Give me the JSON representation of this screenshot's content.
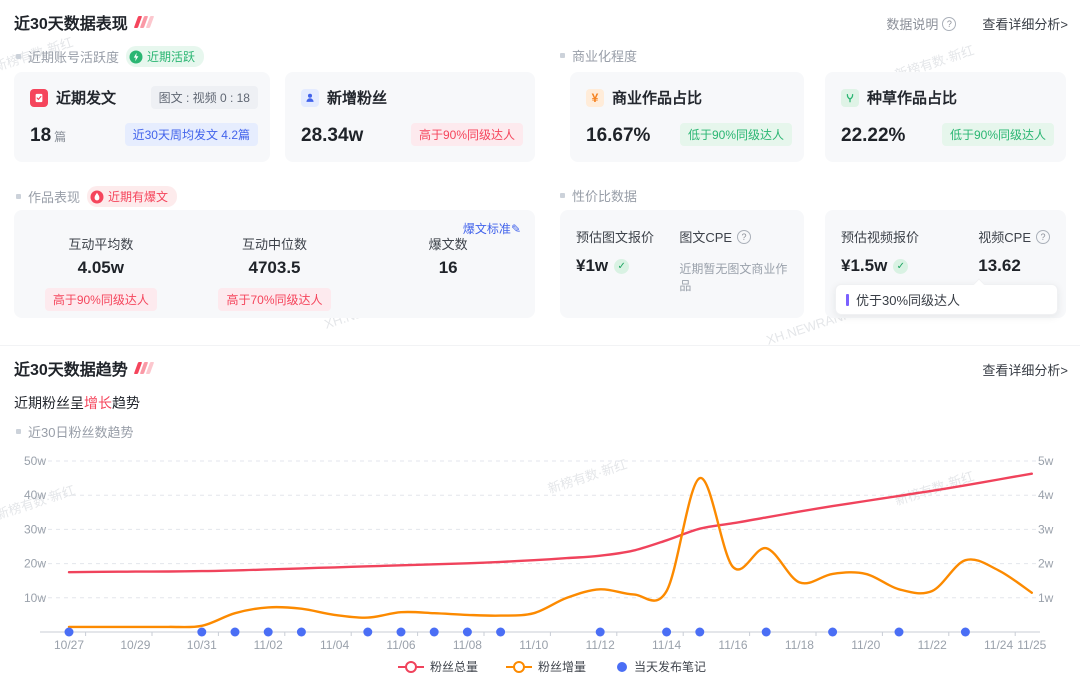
{
  "icons": {
    "question": "?",
    "pencil": "✎",
    "check": "✓"
  },
  "performance": {
    "title": "近30天数据表现",
    "data_note_label": "数据说明",
    "detail_link": "查看详细分析>",
    "activity": {
      "label": "近期账号活跃度",
      "badge": "近期活跃"
    },
    "commerce_label": "商业化程度",
    "works": {
      "label": "作品表现",
      "badge": "近期有爆文"
    },
    "value_label": "性价比数据",
    "cards": {
      "posts": {
        "title": "近期发文",
        "ratio_pill": "图文 : 视频 0 : 18",
        "value": "18",
        "unit": "篇",
        "weekly_pill": "近30天周均发文 4.2篇"
      },
      "new_fans": {
        "title": "新增粉丝",
        "value": "28.34w",
        "pill": "高于90%同级达人"
      },
      "commercial": {
        "title": "商业作品占比",
        "value": "16.67%",
        "pill": "低于90%同级达人"
      },
      "seeding": {
        "title": "种草作品占比",
        "value": "22.22%",
        "pill": "低于90%同级达人"
      }
    },
    "works_card": {
      "standard_link": "爆文标准",
      "cols": [
        {
          "label": "互动平均数",
          "value": "4.05w",
          "pill": "高于90%同级达人"
        },
        {
          "label": "互动中位数",
          "value": "4703.5",
          "pill": "高于70%同级达人"
        },
        {
          "label": "爆文数",
          "value": "16"
        }
      ]
    },
    "image_price": {
      "price_label": "预估图文报价",
      "price": "¥1w",
      "cpe_label": "图文CPE",
      "note": "近期暂无图文商业作品"
    },
    "video_price": {
      "price_label": "预估视频报价",
      "price": "¥1.5w",
      "cpe_label": "视频CPE",
      "cpe_value": "13.62",
      "tooltip": "优于30%同级达人"
    }
  },
  "trend": {
    "title": "近30天数据趋势",
    "detail_link": "查看详细分析>",
    "subtitle": {
      "prefix": "近期粉丝呈",
      "highlight": "增长",
      "suffix": "趋势"
    },
    "chart_label": "近30日粉丝数趋势"
  },
  "watermarks": {
    "brand": "新榜有数·新红",
    "site": "XH.NEWRANK.CN"
  },
  "chart_data": {
    "type": "line",
    "title": "近30日粉丝数趋势",
    "x": [
      "10/27",
      "10/28",
      "10/29",
      "10/30",
      "10/31",
      "11/01",
      "11/02",
      "11/03",
      "11/04",
      "11/05",
      "11/06",
      "11/07",
      "11/08",
      "11/09",
      "11/10",
      "11/11",
      "11/12",
      "11/13",
      "11/14",
      "11/15",
      "11/16",
      "11/17",
      "11/18",
      "11/19",
      "11/20",
      "11/21",
      "11/22",
      "11/23",
      "11/24",
      "11/25"
    ],
    "x_tick_labels": [
      "10/27",
      "10/29",
      "10/31",
      "11/02",
      "11/04",
      "11/06",
      "11/08",
      "11/10",
      "11/12",
      "11/14",
      "11/16",
      "11/18",
      "11/20",
      "11/22",
      "11/24",
      "11/25"
    ],
    "left_axis": {
      "unit": "w",
      "min": 0,
      "max": 50,
      "ticks": [
        "50w",
        "40w",
        "30w",
        "20w",
        "10w"
      ]
    },
    "right_axis": {
      "unit": "w",
      "min": 0,
      "max": 5,
      "ticks": [
        "5w",
        "4w",
        "3w",
        "2w",
        "1w"
      ]
    },
    "grid": "dashed",
    "legend_position": "bottom",
    "series": [
      {
        "name": "粉丝总量",
        "axis": "left",
        "color": "#f0435c",
        "values": [
          17.5,
          17.6,
          17.65,
          17.7,
          17.8,
          18.0,
          18.3,
          18.6,
          18.9,
          19.2,
          19.5,
          19.8,
          20.1,
          20.5,
          21.0,
          21.6,
          22.3,
          23.8,
          26.8,
          30.2,
          31.8,
          33.5,
          35.2,
          36.8,
          38.3,
          39.8,
          41.3,
          42.9,
          44.6,
          46.3
        ]
      },
      {
        "name": "粉丝增量",
        "axis": "right",
        "color": "#fc8a00",
        "values": [
          0.15,
          0.15,
          0.15,
          0.15,
          0.18,
          0.55,
          0.72,
          0.68,
          0.5,
          0.42,
          0.58,
          0.55,
          0.5,
          0.48,
          0.55,
          1.0,
          1.25,
          1.1,
          1.2,
          4.5,
          1.9,
          2.45,
          1.45,
          1.7,
          1.7,
          1.25,
          1.2,
          2.1,
          1.8,
          1.15
        ]
      }
    ],
    "scatter": {
      "name": "当天发布笔记",
      "color": "#4a6ef5",
      "dates": [
        "10/27",
        "10/31",
        "11/01",
        "11/02",
        "11/03",
        "11/05",
        "11/06",
        "11/07",
        "11/08",
        "11/09",
        "11/12",
        "11/14",
        "11/15",
        "11/17",
        "11/19",
        "11/21",
        "11/23"
      ]
    },
    "legend": [
      "粉丝总量",
      "粉丝增量",
      "当天发布笔记"
    ]
  }
}
